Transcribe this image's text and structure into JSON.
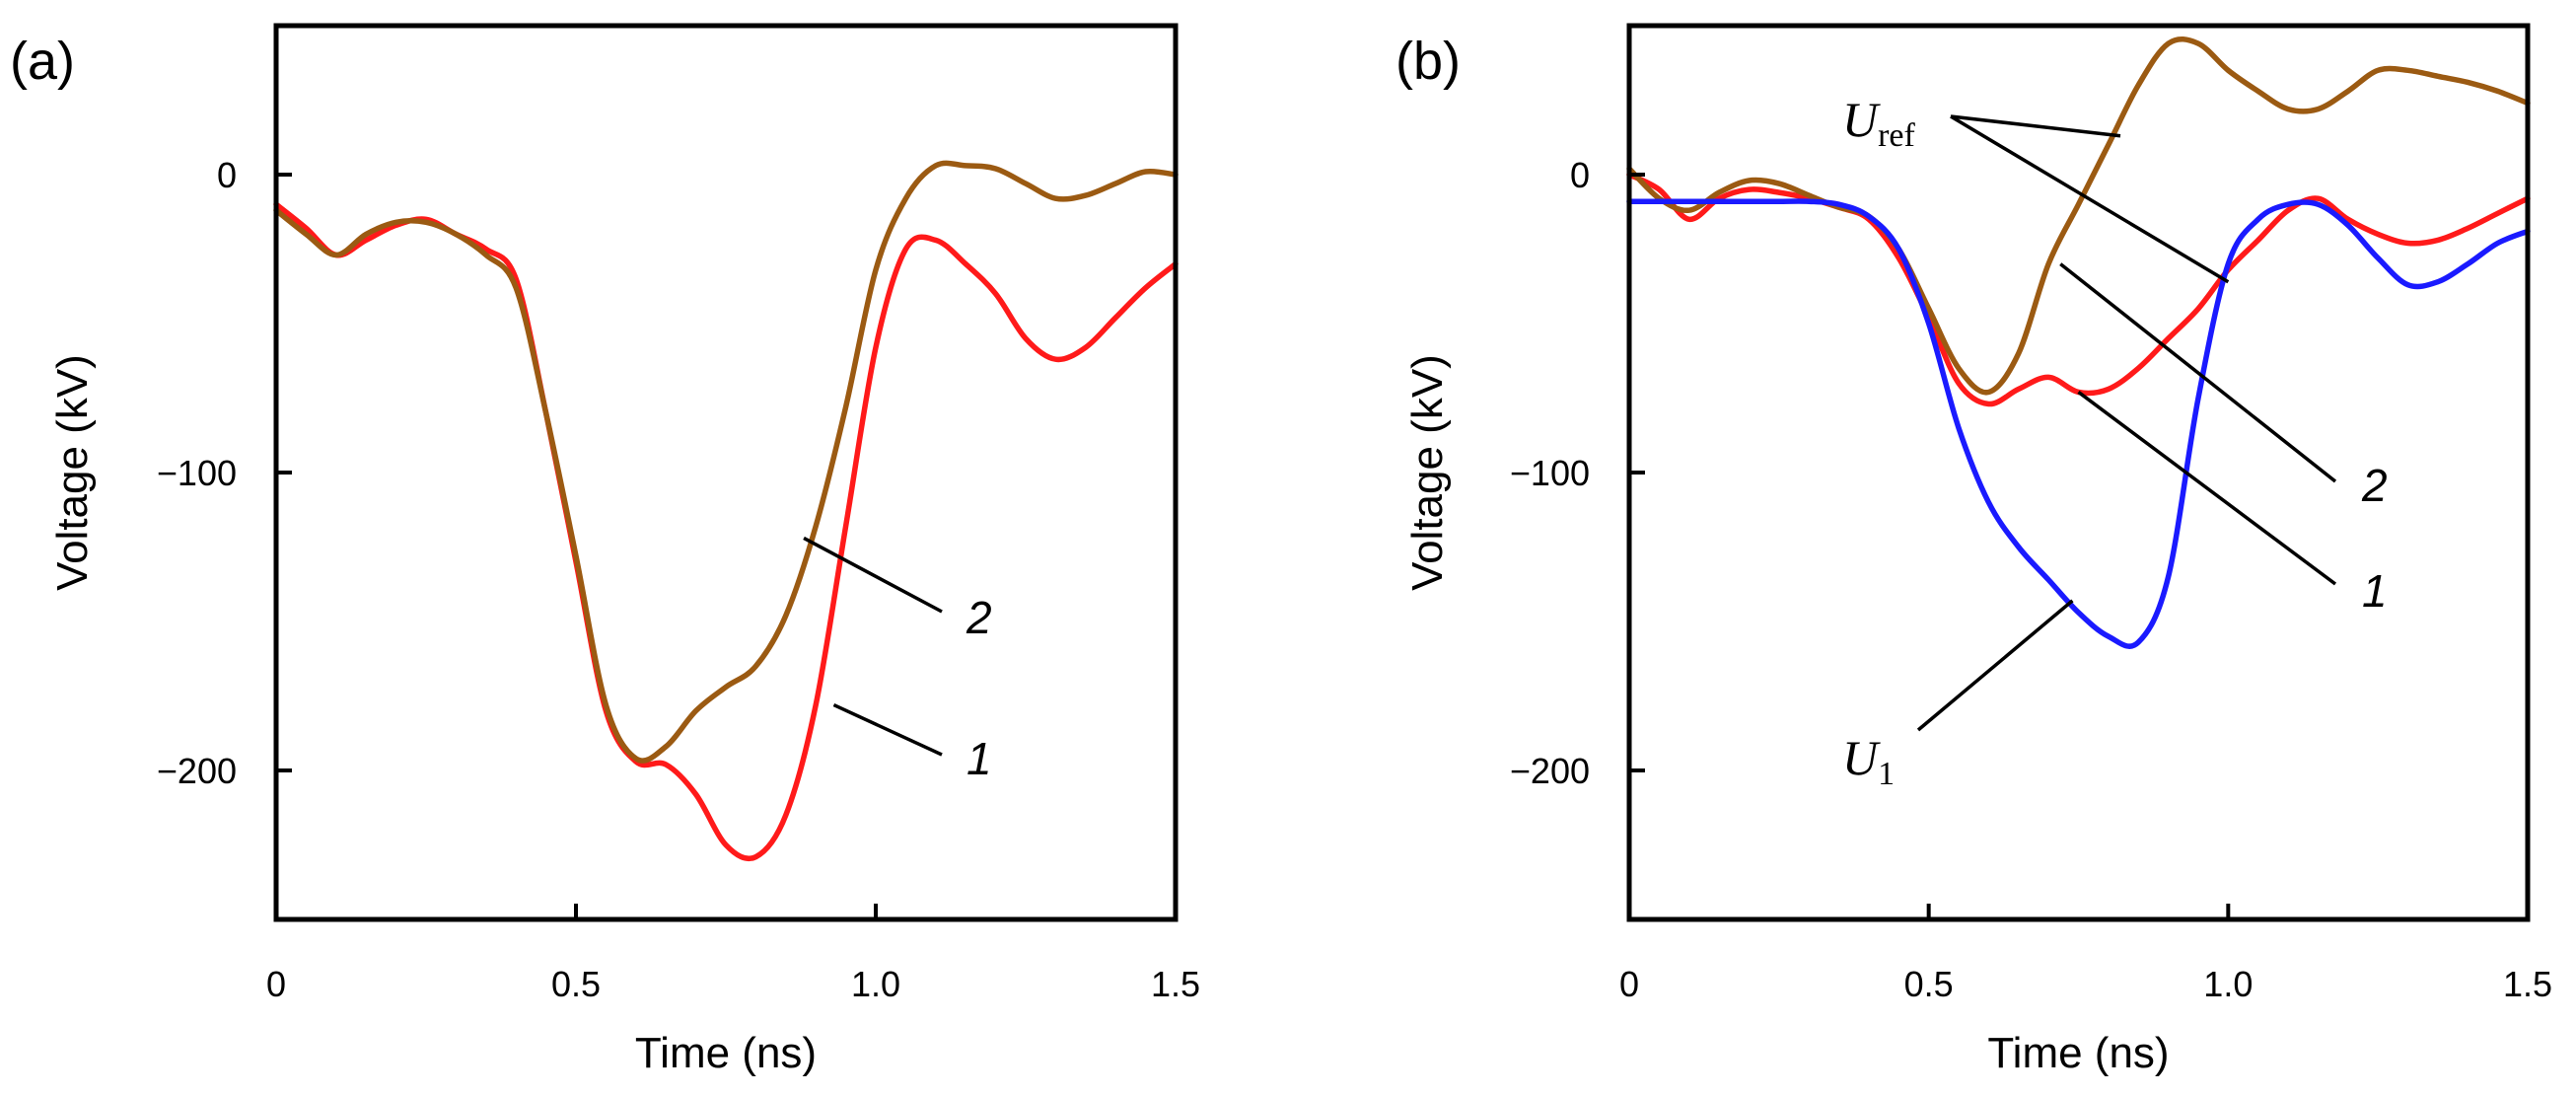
{
  "chart_data": [
    {
      "panel": "(a)",
      "type": "line",
      "xlabel": "Time (ns)",
      "ylabel": "Voltage (kV)",
      "xlim": [
        0,
        1.5
      ],
      "ylim": [
        -250,
        50
      ],
      "xticks": [
        0,
        0.5,
        1.0,
        1.5
      ],
      "xtick_labels": [
        "0",
        "0.5",
        "1.0",
        "1.5"
      ],
      "yticks": [
        0,
        -100,
        -200
      ],
      "ytick_labels": [
        "0",
        "−100",
        "−200"
      ],
      "grid": false,
      "series": [
        {
          "name": "1",
          "color": "#ff1a1a",
          "x": [
            0,
            0.05,
            0.1,
            0.15,
            0.2,
            0.25,
            0.3,
            0.35,
            0.4,
            0.45,
            0.5,
            0.55,
            0.6,
            0.65,
            0.7,
            0.75,
            0.8,
            0.85,
            0.9,
            0.95,
            1.0,
            1.05,
            1.1,
            1.15,
            1.2,
            1.25,
            1.3,
            1.35,
            1.4,
            1.45,
            1.5
          ],
          "y": [
            -10,
            -18,
            -27,
            -22,
            -17,
            -15,
            -20,
            -25,
            -35,
            -80,
            -130,
            -180,
            -197,
            -198,
            -208,
            -225,
            -229,
            -215,
            -178,
            -118,
            -58,
            -25,
            -22,
            -30,
            -40,
            -55,
            -62,
            -58,
            -48,
            -38,
            -30
          ]
        },
        {
          "name": "2",
          "color": "#9b5a12",
          "x": [
            0,
            0.05,
            0.1,
            0.15,
            0.2,
            0.25,
            0.3,
            0.35,
            0.4,
            0.45,
            0.5,
            0.55,
            0.6,
            0.65,
            0.7,
            0.75,
            0.8,
            0.85,
            0.9,
            0.95,
            1.0,
            1.05,
            1.1,
            1.15,
            1.2,
            1.25,
            1.3,
            1.35,
            1.4,
            1.45,
            1.5
          ],
          "y": [
            -12,
            -20,
            -27,
            -20,
            -16,
            -16,
            -20,
            -27,
            -38,
            -80,
            -128,
            -178,
            -196,
            -192,
            -180,
            -172,
            -165,
            -148,
            -118,
            -78,
            -32,
            -8,
            3,
            3,
            2,
            -3,
            -8,
            -7,
            -3,
            1,
            0
          ]
        }
      ],
      "annotations": [
        {
          "text": "2",
          "series": "2",
          "at_x": 0.88,
          "at_y": -122
        },
        {
          "text": "1",
          "series": "1",
          "at_x": 0.93,
          "at_y": -178
        }
      ]
    },
    {
      "panel": "(b)",
      "type": "line",
      "xlabel": "Time (ns)",
      "ylabel": "Voltage (kV)",
      "xlim": [
        0,
        1.5
      ],
      "ylim": [
        -250,
        50
      ],
      "xticks": [
        0,
        0.5,
        1.0,
        1.5
      ],
      "xtick_labels": [
        "0",
        "0.5",
        "1.0",
        "1.5"
      ],
      "yticks": [
        0,
        -100,
        -200
      ],
      "ytick_labels": [
        "0",
        "−100",
        "−200"
      ],
      "grid": false,
      "series": [
        {
          "name": "1",
          "color": "#ff1a1a",
          "x": [
            0,
            0.05,
            0.1,
            0.15,
            0.2,
            0.25,
            0.3,
            0.35,
            0.4,
            0.45,
            0.5,
            0.55,
            0.6,
            0.65,
            0.7,
            0.75,
            0.8,
            0.85,
            0.9,
            0.95,
            1.0,
            1.05,
            1.1,
            1.15,
            1.2,
            1.25,
            1.3,
            1.35,
            1.4,
            1.45,
            1.5
          ],
          "y": [
            0,
            -5,
            -15,
            -8,
            -5,
            -6,
            -8,
            -11,
            -15,
            -28,
            -48,
            -70,
            -77,
            -72,
            -68,
            -73,
            -72,
            -65,
            -55,
            -45,
            -32,
            -22,
            -12,
            -8,
            -15,
            -20,
            -23,
            -22,
            -18,
            -13,
            -8
          ]
        },
        {
          "name": "2",
          "color": "#9b5a12",
          "x": [
            0,
            0.05,
            0.1,
            0.15,
            0.2,
            0.25,
            0.3,
            0.35,
            0.4,
            0.45,
            0.5,
            0.55,
            0.6,
            0.65,
            0.7,
            0.75,
            0.8,
            0.85,
            0.9,
            0.95,
            1.0,
            1.05,
            1.1,
            1.15,
            1.2,
            1.25,
            1.3,
            1.35,
            1.4,
            1.45,
            1.5
          ],
          "y": [
            2,
            -8,
            -12,
            -6,
            -2,
            -3,
            -7,
            -11,
            -14,
            -25,
            -45,
            -65,
            -73,
            -60,
            -30,
            -10,
            10,
            30,
            44,
            44,
            35,
            28,
            22,
            22,
            28,
            35,
            35,
            33,
            31,
            28,
            24
          ]
        },
        {
          "name": "U1",
          "color": "#1a1aff",
          "x": [
            0,
            0.05,
            0.1,
            0.15,
            0.2,
            0.25,
            0.3,
            0.35,
            0.4,
            0.45,
            0.5,
            0.55,
            0.6,
            0.65,
            0.7,
            0.75,
            0.8,
            0.85,
            0.9,
            0.95,
            1.0,
            1.05,
            1.1,
            1.15,
            1.2,
            1.25,
            1.3,
            1.35,
            1.4,
            1.45,
            1.5
          ],
          "y": [
            -9,
            -9,
            -9,
            -9,
            -9,
            -9,
            -9,
            -10,
            -14,
            -25,
            -50,
            -85,
            -110,
            -125,
            -136,
            -147,
            -155,
            -157,
            -135,
            -75,
            -30,
            -15,
            -10,
            -10,
            -17,
            -28,
            -37,
            -36,
            -30,
            -23,
            -19
          ]
        }
      ],
      "annotations": [
        {
          "text": "2",
          "series": "2",
          "at_x": 0.72,
          "at_y": -30
        },
        {
          "text": "1",
          "series": "1",
          "at_x": 0.75,
          "at_y": -73
        },
        {
          "text": "U",
          "sub": "ref",
          "targets": [
            {
              "series": "2",
              "at_x": 0.82,
              "at_y": 13
            },
            {
              "series": "1",
              "at_x": 1.0,
              "at_y": -36
            }
          ]
        },
        {
          "text": "U",
          "sub": "1",
          "series": "U1",
          "at_x": 0.74,
          "at_y": -143
        }
      ]
    }
  ]
}
